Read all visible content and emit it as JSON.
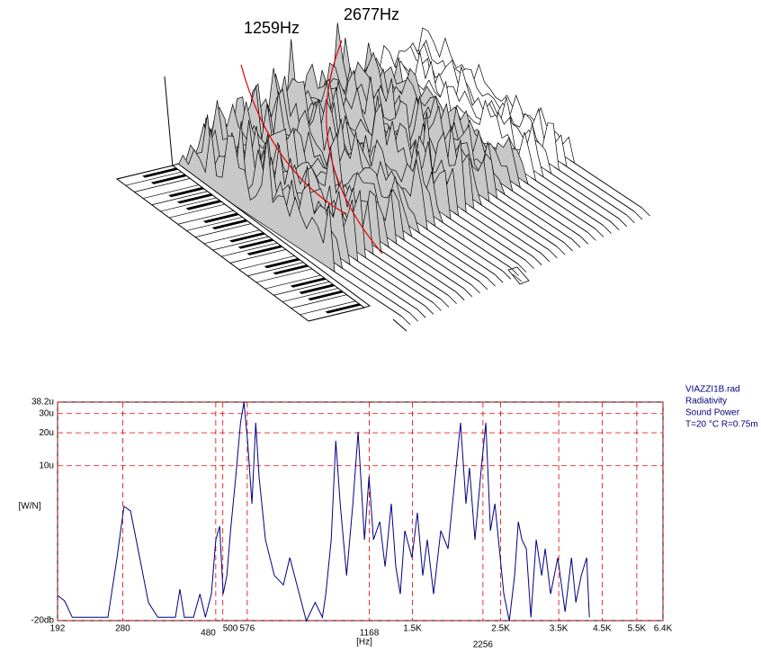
{
  "waterfall": {
    "labels": [
      "1259Hz",
      "2677Hz"
    ]
  },
  "chart_data": {
    "type": "line",
    "x_label": "[Hz]",
    "y_label": "[W/N]",
    "info": [
      "VIAZZI1B.rad",
      "Radiativity",
      "Sound Power",
      "T=20 °C R=0.75m"
    ],
    "color": "#00007f",
    "grid_color": "#e00000",
    "log_x": true,
    "log_y": true,
    "grid": true,
    "xlim": [
      192,
      6400
    ],
    "xticks": [
      192,
      280,
      480,
      500,
      576,
      1168,
      {
        "value": 1500,
        "label": "1.5K"
      },
      2256,
      {
        "value": 2500,
        "label": "2.5K"
      },
      {
        "value": 3500,
        "label": "3.5K"
      },
      {
        "value": 4500,
        "label": "4.5K"
      },
      {
        "value": 5500,
        "label": "5.5K"
      },
      {
        "value": 6400,
        "label": "6.4K"
      }
    ],
    "ylim": [
      0.382,
      38.2
    ],
    "yticks": [
      {
        "value": 38.2,
        "label": "38.2u"
      },
      {
        "value": 30,
        "label": "30u"
      },
      {
        "value": 20,
        "label": "20u"
      },
      {
        "value": 10,
        "label": "10u"
      },
      {
        "value": 0.382,
        "label": "-20db"
      }
    ],
    "x": [
      192,
      200,
      209,
      257,
      271,
      282,
      293,
      309,
      325,
      343,
      380,
      390,
      400,
      422,
      438,
      452,
      468,
      480,
      491,
      501,
      512,
      523,
      539,
      554,
      565,
      577,
      592,
      605,
      617,
      640,
      674,
      710,
      737,
      768,
      811,
      854,
      890,
      908,
      937,
      962,
      987,
      1024,
      1062,
      1095,
      1136,
      1166,
      1197,
      1241,
      1280,
      1327,
      1362,
      1398,
      1435,
      1496,
      1543,
      1592,
      1634,
      1695,
      1767,
      1843,
      1911,
      1982,
      2045,
      2087,
      2154,
      2235,
      2294,
      2356,
      2418,
      2494,
      2546,
      2628,
      2711,
      2769,
      2828,
      2901,
      2978,
      3072,
      3170,
      3235,
      3339,
      3481,
      3631,
      3767,
      3865,
      3988,
      4115,
      4180
    ],
    "values": [
      0.65,
      0.58,
      0.41,
      0.41,
      1.44,
      4.24,
      3.85,
      1.44,
      0.56,
      0.41,
      0.41,
      0.74,
      0.41,
      0.41,
      0.67,
      0.41,
      0.67,
      2.1,
      2.79,
      0.67,
      0.99,
      2.54,
      7.93,
      24.7,
      38.2,
      16.9,
      4.49,
      24.7,
      7.93,
      2.1,
      0.99,
      0.81,
      1.44,
      0.81,
      0.38,
      0.56,
      0.41,
      0.67,
      2.1,
      16.9,
      4.49,
      0.99,
      4.49,
      20.4,
      2.1,
      7.93,
      2.1,
      3.07,
      1.19,
      4.49,
      1.19,
      0.67,
      2.54,
      1.44,
      3.71,
      0.99,
      2.1,
      0.67,
      2.54,
      1.74,
      6.56,
      24.7,
      4.49,
      9.57,
      2.1,
      9.57,
      24.7,
      2.54,
      4.49,
      1.44,
      0.67,
      0.38,
      0.99,
      3.07,
      2.1,
      1.74,
      0.41,
      2.1,
      0.99,
      1.74,
      0.67,
      1.44,
      0.46,
      1.44,
      0.56,
      0.99,
      1.44,
      0.41
    ]
  }
}
